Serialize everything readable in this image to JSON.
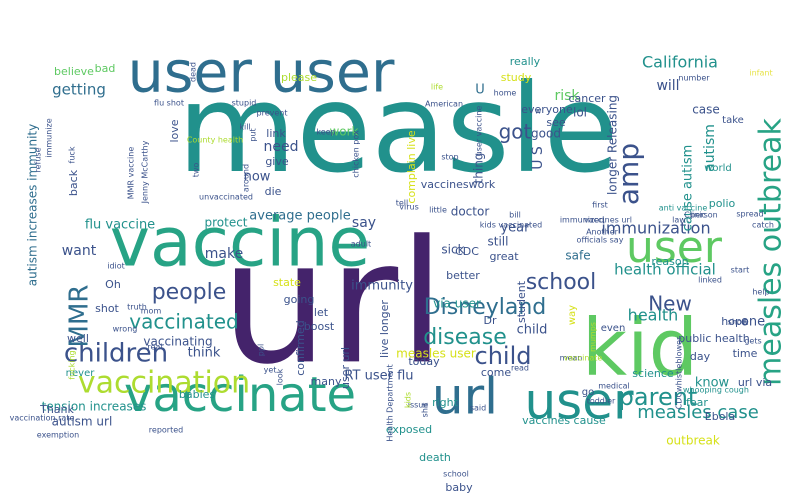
{
  "palette": {
    "purple": "#44236b",
    "indigo": "#3b528b",
    "blue": "#2f6e8e",
    "teal": "#21918c",
    "sea": "#27a385",
    "green": "#5ec962",
    "lime": "#addc30",
    "yellow": "#d6e11a",
    "pale": "#e7e34a"
  },
  "words": [
    {
      "text": "measle",
      "color": "teal"
    },
    {
      "text": "url",
      "color": "purple"
    },
    {
      "text": "vaccine",
      "color": "sea"
    },
    {
      "text": "user user",
      "color": "blue"
    },
    {
      "text": "vaccinate",
      "color": "sea"
    },
    {
      "text": "kid",
      "color": "green"
    },
    {
      "text": "url",
      "color": "blue"
    },
    {
      "text": "user",
      "color": "teal"
    },
    {
      "text": "user",
      "color": "green"
    },
    {
      "text": "measles outbreak",
      "color": "sea"
    },
    {
      "text": "vaccination",
      "color": "lime"
    },
    {
      "text": "children",
      "color": "indigo"
    },
    {
      "text": "people",
      "color": "indigo"
    },
    {
      "text": "amp",
      "color": "indigo"
    },
    {
      "text": "got",
      "color": "indigo"
    },
    {
      "text": "parent",
      "color": "teal"
    },
    {
      "text": "child",
      "color": "indigo"
    },
    {
      "text": "disease",
      "color": "teal"
    },
    {
      "text": "Disneyland",
      "color": "blue"
    },
    {
      "text": "school",
      "color": "indigo"
    },
    {
      "text": "MMR",
      "color": "blue"
    },
    {
      "text": "vaccinated",
      "color": "teal"
    },
    {
      "text": "immunization",
      "color": "indigo"
    },
    {
      "text": "California",
      "color": "teal"
    },
    {
      "text": "New",
      "color": "indigo"
    },
    {
      "text": "measles case",
      "color": "teal"
    },
    {
      "text": "health",
      "color": "teal"
    },
    {
      "text": "health official",
      "color": "teal"
    },
    {
      "text": "risk",
      "color": "green"
    },
    {
      "text": "outbreak",
      "color": "yellow"
    },
    {
      "text": "getting",
      "color": "blue"
    },
    {
      "text": "U",
      "color": "blue"
    },
    {
      "text": "U S",
      "color": "indigo"
    },
    {
      "text": "immunity",
      "color": "indigo"
    },
    {
      "text": "make",
      "color": "indigo"
    },
    {
      "text": "want",
      "color": "indigo"
    },
    {
      "text": "need",
      "color": "indigo"
    },
    {
      "text": "now",
      "color": "indigo"
    },
    {
      "text": "say",
      "color": "indigo"
    },
    {
      "text": "will",
      "color": "indigo"
    },
    {
      "text": "case",
      "color": "indigo"
    },
    {
      "text": "autism",
      "color": "teal"
    },
    {
      "text": "cause autism",
      "color": "teal"
    },
    {
      "text": "one",
      "color": "indigo"
    },
    {
      "text": "know",
      "color": "teal"
    },
    {
      "text": "child",
      "color": "indigo"
    },
    {
      "text": "think",
      "color": "indigo"
    },
    {
      "text": "safe",
      "color": "blue"
    },
    {
      "text": "RT user flu",
      "color": "indigo"
    },
    {
      "text": "via user",
      "color": "teal"
    },
    {
      "text": "autism increases immunity",
      "color": "blue"
    },
    {
      "text": "flu vaccine",
      "color": "teal"
    },
    {
      "text": "measles user",
      "color": "yellow"
    },
    {
      "text": "average people",
      "color": "blue"
    },
    {
      "text": "protect",
      "color": "teal"
    },
    {
      "text": "vaccinating",
      "color": "indigo"
    },
    {
      "text": "tension increases",
      "color": "teal"
    },
    {
      "text": "autism url",
      "color": "indigo"
    },
    {
      "text": "Thank",
      "color": "indigo"
    },
    {
      "text": "work",
      "color": "green"
    },
    {
      "text": "year",
      "color": "indigo"
    },
    {
      "text": "study",
      "color": "yellow"
    },
    {
      "text": "everyone",
      "color": "indigo"
    },
    {
      "text": "good",
      "color": "indigo"
    },
    {
      "text": "see",
      "color": "indigo"
    },
    {
      "text": "lol",
      "color": "indigo"
    },
    {
      "text": "thing",
      "color": "indigo"
    },
    {
      "text": "sick",
      "color": "indigo"
    },
    {
      "text": "doctor",
      "color": "indigo"
    },
    {
      "text": "still",
      "color": "indigo"
    },
    {
      "text": "complain live",
      "color": "yellow"
    },
    {
      "text": "vaccineswork",
      "color": "indigo"
    },
    {
      "text": "longer Releasing",
      "color": "indigo"
    },
    {
      "text": "cancer",
      "color": "indigo"
    },
    {
      "text": "polio",
      "color": "teal"
    },
    {
      "text": "world",
      "color": "teal"
    },
    {
      "text": "take",
      "color": "indigo"
    },
    {
      "text": "reason",
      "color": "teal"
    },
    {
      "text": "Oh",
      "color": "indigo"
    },
    {
      "text": "shot",
      "color": "indigo"
    },
    {
      "text": "well",
      "color": "indigo"
    },
    {
      "text": "never",
      "color": "teal"
    },
    {
      "text": "back",
      "color": "indigo"
    },
    {
      "text": "believe",
      "color": "green"
    },
    {
      "text": "bad",
      "color": "green"
    },
    {
      "text": "please",
      "color": "lime"
    },
    {
      "text": "link",
      "color": "indigo"
    },
    {
      "text": "give",
      "color": "indigo"
    },
    {
      "text": "die",
      "color": "indigo"
    },
    {
      "text": "love",
      "color": "indigo"
    },
    {
      "text": "really",
      "color": "teal"
    },
    {
      "text": "state",
      "color": "yellow"
    },
    {
      "text": "going",
      "color": "indigo"
    },
    {
      "text": "babies",
      "color": "teal"
    },
    {
      "text": "let",
      "color": "indigo"
    },
    {
      "text": "boost",
      "color": "indigo"
    },
    {
      "text": "confirmed",
      "color": "indigo"
    },
    {
      "text": "user url",
      "color": "indigo"
    },
    {
      "text": "many",
      "color": "indigo"
    },
    {
      "text": "live longer",
      "color": "indigo"
    },
    {
      "text": "CDC",
      "color": "indigo"
    },
    {
      "text": "great",
      "color": "indigo"
    },
    {
      "text": "better",
      "color": "indigo"
    },
    {
      "text": "come",
      "color": "indigo"
    },
    {
      "text": "student",
      "color": "indigo"
    },
    {
      "text": "today",
      "color": "indigo"
    },
    {
      "text": "Dr",
      "color": "indigo"
    },
    {
      "text": "right",
      "color": "teal"
    },
    {
      "text": "exposed",
      "color": "teal"
    },
    {
      "text": "death",
      "color": "teal"
    },
    {
      "text": "baby",
      "color": "indigo"
    },
    {
      "text": "vaccines cause",
      "color": "teal"
    },
    {
      "text": "Ebola",
      "color": "indigo"
    },
    {
      "text": "hope",
      "color": "indigo"
    },
    {
      "text": "day",
      "color": "indigo"
    },
    {
      "text": "time",
      "color": "indigo"
    },
    {
      "text": "url via",
      "color": "indigo"
    },
    {
      "text": "public health",
      "color": "indigo"
    },
    {
      "text": "science",
      "color": "teal"
    },
    {
      "text": "fear",
      "color": "teal"
    },
    {
      "text": "way",
      "color": "yellow"
    },
    {
      "text": "even",
      "color": "indigo"
    },
    {
      "text": "go",
      "color": "indigo"
    },
    {
      "text": "immunized",
      "color": "indigo"
    },
    {
      "text": "vaccines url",
      "color": "indigo"
    },
    {
      "text": "Clinic",
      "color": "indigo"
    },
    {
      "text": "spread",
      "color": "indigo"
    },
    {
      "text": "first",
      "color": "indigo"
    },
    {
      "text": "MMR vaccine",
      "color": "indigo"
    },
    {
      "text": "Jenny McCarthy",
      "color": "indigo"
    },
    {
      "text": "two",
      "color": "indigo"
    },
    {
      "text": "unvaccinated",
      "color": "indigo"
    },
    {
      "text": "flu shot",
      "color": "indigo"
    },
    {
      "text": "kids vaccinated",
      "color": "indigo"
    },
    {
      "text": "anti vaccine",
      "color": "teal"
    },
    {
      "text": "whooping cough",
      "color": "teal"
    },
    {
      "text": "County health",
      "color": "lime"
    },
    {
      "text": "infant",
      "color": "pale"
    },
    {
      "text": "American",
      "color": "indigo"
    },
    {
      "text": "stupid",
      "color": "indigo"
    },
    {
      "text": "prevent",
      "color": "indigo"
    },
    {
      "text": "home",
      "color": "indigo"
    },
    {
      "text": "kill",
      "color": "indigo"
    },
    {
      "text": "put",
      "color": "indigo"
    },
    {
      "text": "virus",
      "color": "indigo"
    },
    {
      "text": "bill",
      "color": "indigo"
    },
    {
      "text": "w",
      "color": "indigo"
    },
    {
      "text": "number",
      "color": "indigo"
    },
    {
      "text": "little",
      "color": "indigo"
    },
    {
      "text": "tell",
      "color": "indigo"
    },
    {
      "text": "adult",
      "color": "indigo"
    },
    {
      "text": "idiot",
      "color": "indigo"
    },
    {
      "text": "truth",
      "color": "indigo"
    },
    {
      "text": "mom",
      "color": "indigo"
    },
    {
      "text": "real",
      "color": "indigo"
    },
    {
      "text": "yet",
      "color": "indigo"
    },
    {
      "text": "look",
      "color": "indigo"
    },
    {
      "text": "issue",
      "color": "indigo"
    },
    {
      "text": "shit",
      "color": "indigo"
    },
    {
      "text": "said",
      "color": "indigo"
    },
    {
      "text": "read",
      "color": "indigo"
    },
    {
      "text": "mean",
      "color": "indigo"
    },
    {
      "text": "medical",
      "color": "indigo"
    },
    {
      "text": "CDCwhistleblower",
      "color": "indigo"
    },
    {
      "text": "gets",
      "color": "indigo"
    },
    {
      "text": "show",
      "color": "indigo"
    },
    {
      "text": "linked",
      "color": "indigo"
    },
    {
      "text": "help",
      "color": "indigo"
    },
    {
      "text": "start",
      "color": "indigo"
    },
    {
      "text": "catch",
      "color": "indigo"
    },
    {
      "text": "person",
      "color": "indigo"
    },
    {
      "text": "law",
      "color": "indigo"
    },
    {
      "text": "Another",
      "color": "indigo"
    },
    {
      "text": "officials say",
      "color": "indigo"
    },
    {
      "text": "vaccination rate",
      "color": "indigo"
    },
    {
      "text": "refuse",
      "color": "indigo"
    },
    {
      "text": "fuck",
      "color": "indigo"
    },
    {
      "text": "fucking",
      "color": "lime"
    },
    {
      "text": "exemption",
      "color": "indigo"
    },
    {
      "text": "reported",
      "color": "indigo"
    },
    {
      "text": "immunize",
      "color": "indigo"
    },
    {
      "text": "dead",
      "color": "indigo"
    },
    {
      "text": "life",
      "color": "lime"
    },
    {
      "text": "stop",
      "color": "indigo"
    },
    {
      "text": "keep",
      "color": "indigo"
    },
    {
      "text": "chicken pox",
      "color": "indigo"
    },
    {
      "text": "user vaccine",
      "color": "indigo"
    },
    {
      "text": "around",
      "color": "indigo"
    },
    {
      "text": "ppl",
      "color": "indigo"
    },
    {
      "text": "Health Department",
      "color": "indigo"
    },
    {
      "text": "kids",
      "color": "lime"
    },
    {
      "text": "wrong",
      "color": "indigo"
    },
    {
      "text": "school",
      "color": "indigo"
    },
    {
      "text": "mumps",
      "color": "lime"
    },
    {
      "text": "vaccinate",
      "color": "lime"
    },
    {
      "text": "toddler",
      "color": "indigo"
    }
  ]
}
